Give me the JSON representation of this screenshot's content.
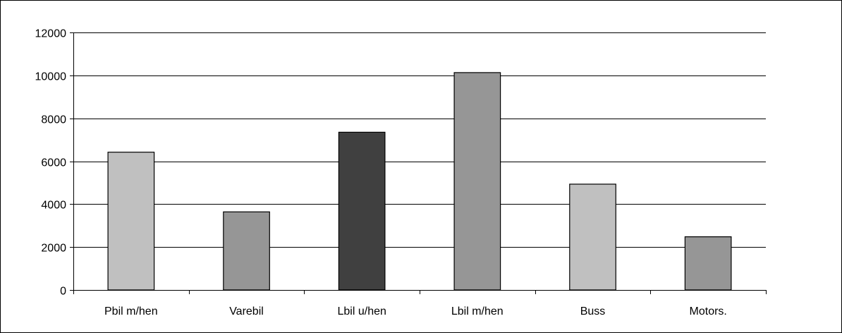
{
  "chart_data": {
    "type": "bar",
    "title": "",
    "xlabel": "",
    "ylabel": "",
    "categories": [
      "Pbil m/hen",
      "Varebil",
      "Lbil u/hen",
      "Lbil m/hen",
      "Buss",
      "Motors."
    ],
    "values": [
      6420,
      3640,
      7350,
      10130,
      4930,
      2480
    ],
    "bar_colors": [
      "#c0c0c0",
      "#969696",
      "#404040",
      "#969696",
      "#c0c0c0",
      "#969696"
    ],
    "ylim": [
      0,
      12000
    ],
    "y_ticks": [
      "0",
      "2000",
      "4000",
      "6000",
      "8000",
      "10000",
      "12000"
    ],
    "grid": true,
    "legend": "none"
  }
}
